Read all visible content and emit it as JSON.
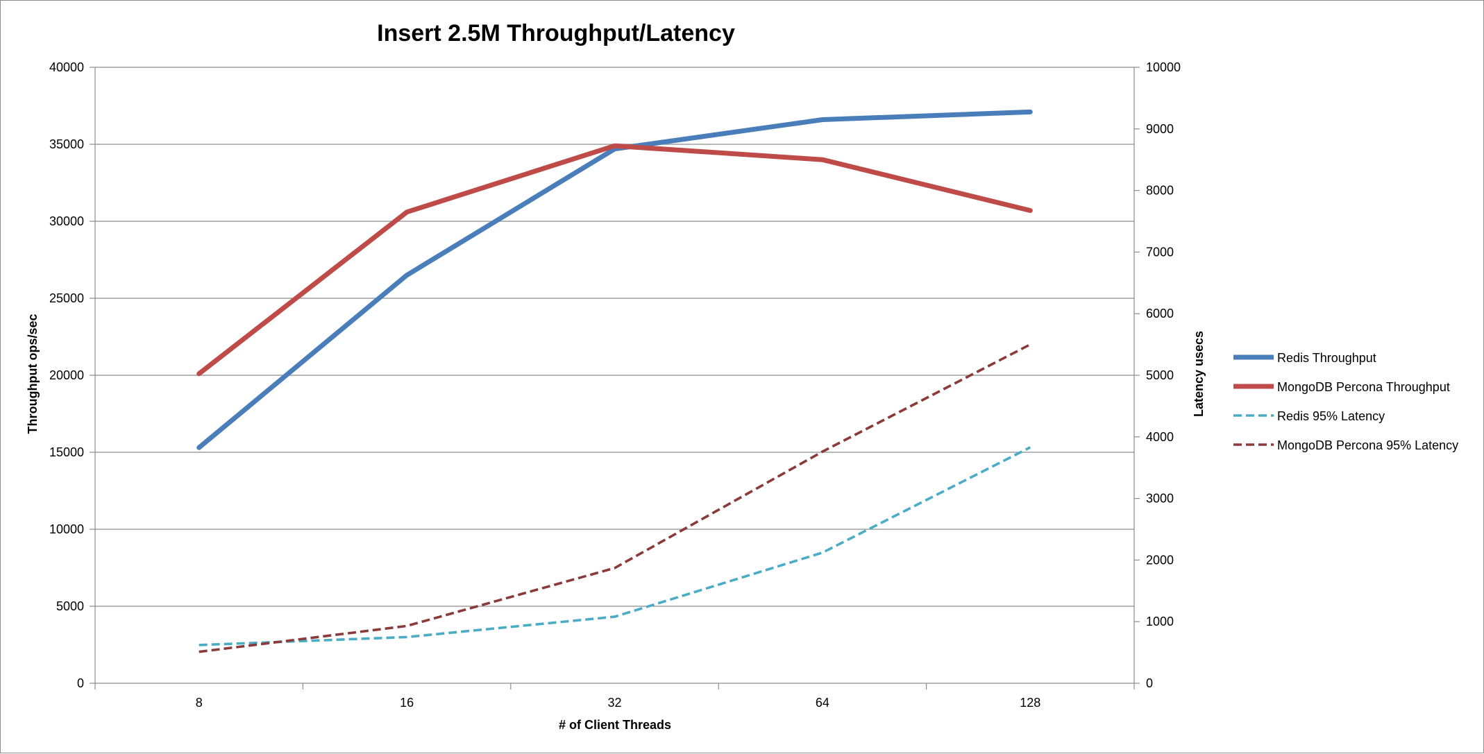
{
  "chart_data": {
    "type": "line",
    "title": "Insert 2.5M Throughput/Latency",
    "xlabel": "# of Client Threads",
    "ylabel": "Throughput ops/sec",
    "y2label": "Latency usecs",
    "categories": [
      "8",
      "16",
      "32",
      "64",
      "128"
    ],
    "ylim": [
      0,
      40000
    ],
    "y2lim": [
      0,
      10000
    ],
    "yticks": [
      "0",
      "5000",
      "10000",
      "15000",
      "20000",
      "25000",
      "30000",
      "35000",
      "40000"
    ],
    "y2ticks": [
      "0",
      "1000",
      "2000",
      "3000",
      "4000",
      "5000",
      "6000",
      "7000",
      "8000",
      "9000",
      "10000"
    ],
    "grid": true,
    "legend_position": "right",
    "series": [
      {
        "name": "Redis Throughput",
        "axis": "left",
        "style": "solid",
        "color": "#4a7ebb",
        "values": [
          15300,
          26500,
          34700,
          36600,
          37100
        ]
      },
      {
        "name": "MongoDB Percona Throughput",
        "axis": "left",
        "style": "solid",
        "color": "#be4b48",
        "values": [
          20100,
          30600,
          34900,
          34000,
          30700
        ]
      },
      {
        "name": "Redis 95% Latency",
        "axis": "right",
        "style": "dashed",
        "color": "#4bacc6",
        "values": [
          620,
          750,
          1080,
          2120,
          3830
        ]
      },
      {
        "name": "MongoDB Percona 95% Latency",
        "axis": "right",
        "style": "dashed",
        "color": "#8b3a3a",
        "values": [
          510,
          930,
          1870,
          3760,
          5500
        ]
      }
    ]
  }
}
